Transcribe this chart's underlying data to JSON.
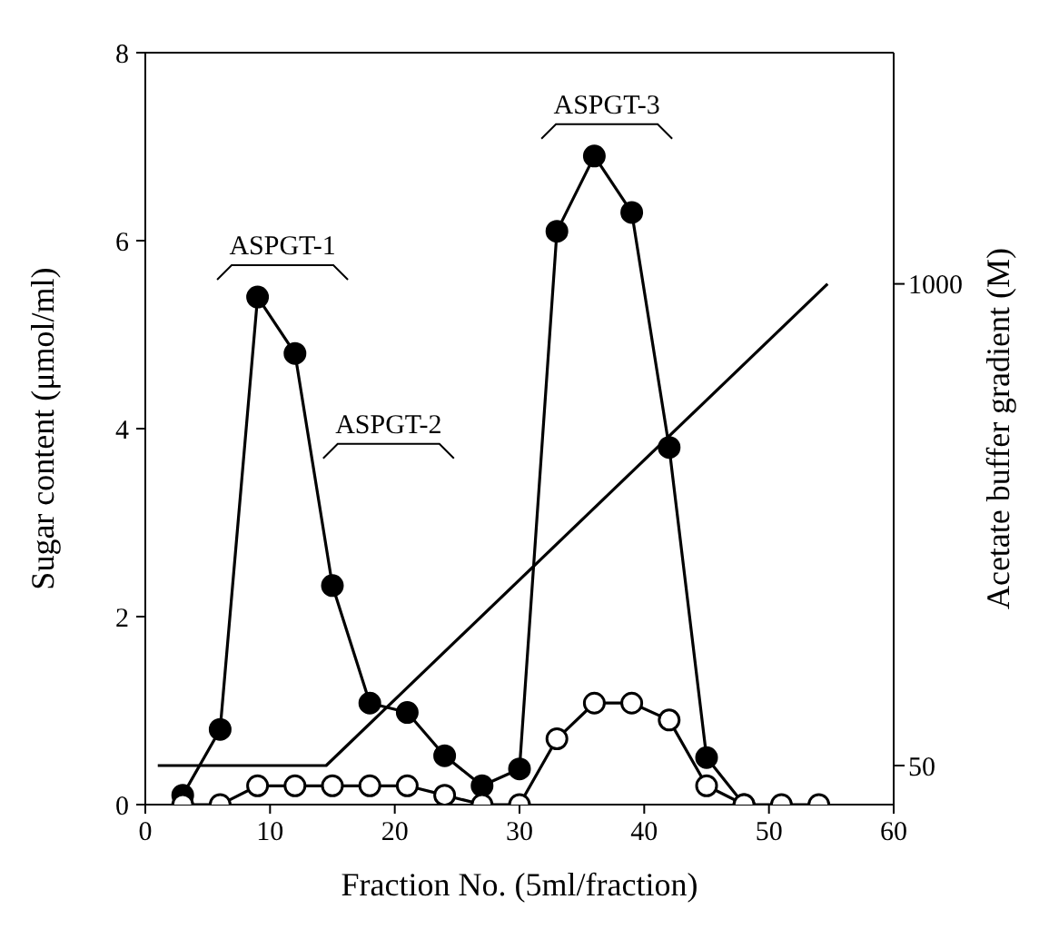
{
  "chart_data": {
    "type": "line",
    "xlabel": "Fraction No. (5ml/fraction)",
    "ylabel": "Sugar content (μmol/ml)",
    "y2label": "Acetate buffer gradient (M)",
    "xlim": [
      0,
      60
    ],
    "xticks": [
      0,
      10,
      20,
      30,
      40,
      50,
      60
    ],
    "ylim": [
      0,
      8
    ],
    "yticks": [
      0,
      2,
      4,
      6,
      8
    ],
    "y2lim": [
      -27,
      1456
    ],
    "y2ticks": [
      50,
      1000
    ],
    "marker": "circle",
    "series": [
      {
        "color": "#000000",
        "x": [
          3,
          6,
          9,
          12,
          15,
          18,
          21,
          24,
          27,
          30,
          33,
          36,
          39,
          42,
          45,
          48
        ],
        "values": [
          0.1,
          0.8,
          5.4,
          4.8,
          2.33,
          1.08,
          0.98,
          0.52,
          0.2,
          0.38,
          6.1,
          6.9,
          6.3,
          3.8,
          0.5,
          0
        ]
      },
      {
        "color": "#000000",
        "x": [
          3,
          6,
          9,
          12,
          15,
          18,
          21,
          24,
          27,
          30,
          33,
          36,
          39,
          42,
          45,
          48,
          51,
          54
        ],
        "values": [
          0,
          0,
          0.2,
          0.2,
          0.2,
          0.2,
          0.2,
          0.1,
          0,
          0,
          0.7,
          1.08,
          1.08,
          0.9,
          0.2,
          0,
          0,
          0
        ]
      },
      {
        "color": "#000000",
        "type": "line",
        "axis": "y2",
        "marker": "none",
        "x": [
          1,
          14.5,
          54.7
        ],
        "values": [
          50,
          50,
          1000
        ]
      }
    ],
    "annotations": [
      "ASPGT-1",
      "ASPGT-2",
      "ASPGT-3"
    ]
  }
}
